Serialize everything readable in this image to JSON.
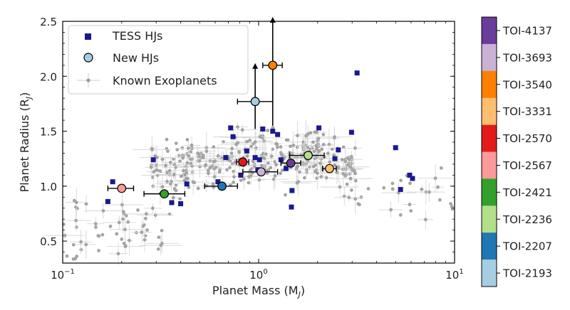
{
  "chart_data": {
    "type": "scatter",
    "xlabel": "Planet Mass (M",
    "xlabel_sub": "J",
    "xlabel_close": ")",
    "ylabel": "Planet Radius (R",
    "ylabel_sub": "J",
    "ylabel_close": ")",
    "xscale": "log",
    "xlim": [
      0.1,
      10
    ],
    "ylim": [
      0.3,
      2.5
    ],
    "x_ticks": [
      {
        "value": 0.1,
        "base": "10",
        "exp": "−1"
      },
      {
        "value": 1,
        "base": "10",
        "exp": "0"
      },
      {
        "value": 10,
        "base": "10",
        "exp": "1"
      }
    ],
    "y_ticks": [
      {
        "value": 0.5,
        "label": "0.5"
      },
      {
        "value": 1.0,
        "label": "1.0"
      },
      {
        "value": 1.5,
        "label": "1.5"
      },
      {
        "value": 2.0,
        "label": "2.0"
      },
      {
        "value": 2.5,
        "label": "2.5"
      }
    ],
    "legend": {
      "placement": "top-left",
      "entries": [
        {
          "label": "TESS HJs",
          "marker": "square",
          "color": "#1a1a8c"
        },
        {
          "label": "New HJs",
          "marker": "circle",
          "color": "#a6cee3"
        },
        {
          "label": "Known Exoplanets",
          "marker": "small-diamond",
          "color": "#9a9a9a"
        }
      ]
    },
    "series": [
      {
        "name": "TESS HJs",
        "marker": "square",
        "color": "#1a1a8c",
        "points": [
          [
            0.17,
            0.86
          ],
          [
            0.18,
            1.04
          ],
          [
            0.29,
            1.24
          ],
          [
            0.36,
            0.85
          ],
          [
            0.4,
            0.84
          ],
          [
            0.43,
            1.02
          ],
          [
            0.62,
            1.04
          ],
          [
            0.68,
            1.26
          ],
          [
            0.72,
            1.53
          ],
          [
            0.74,
            1.45
          ],
          [
            0.81,
            1.1
          ],
          [
            0.87,
            1.32
          ],
          [
            0.96,
            1.26
          ],
          [
            0.99,
            1.15
          ],
          [
            1.01,
            1.24
          ],
          [
            1.05,
            1.52
          ],
          [
            1.18,
            1.5
          ],
          [
            1.25,
            1.47
          ],
          [
            1.3,
            1.24
          ],
          [
            1.38,
            1.16
          ],
          [
            1.47,
            0.81
          ],
          [
            1.48,
            0.96
          ],
          [
            1.82,
            1.28
          ],
          [
            2.03,
            1.53
          ],
          [
            2.28,
            1.16
          ],
          [
            2.45,
            1.25
          ],
          [
            2.55,
            1.33
          ],
          [
            2.98,
            1.49
          ],
          [
            3.18,
            2.03
          ],
          [
            5.0,
            1.35
          ],
          [
            5.3,
            0.97
          ],
          [
            5.9,
            1.1
          ],
          [
            6.1,
            1.07
          ]
        ]
      },
      {
        "name": "New HJs",
        "marker": "circle",
        "points": [
          {
            "label": "TOI-2193",
            "x": 0.96,
            "y": 1.77,
            "color": "#a6cee3",
            "xerr": [
              0.78,
              1.18
            ],
            "yerr": [
              1.66,
              1.88
            ],
            "arrow": "up"
          },
          {
            "label": "TOI-2207",
            "x": 0.65,
            "y": 1.0,
            "color": "#1f78b4",
            "xerr": [
              0.53,
              0.78
            ],
            "yerr": [
              0.98,
              1.02
            ]
          },
          {
            "label": "TOI-2236",
            "x": 1.79,
            "y": 1.28,
            "color": "#b2df8a",
            "xerr": [
              1.44,
              2.16
            ],
            "yerr": [
              1.25,
              1.31
            ]
          },
          {
            "label": "TOI-2421",
            "x": 0.33,
            "y": 0.93,
            "color": "#33a02c",
            "xerr": [
              0.26,
              0.42
            ],
            "yerr": [
              0.91,
              0.95
            ]
          },
          {
            "label": "TOI-2567",
            "x": 0.2,
            "y": 0.98,
            "color": "#fb9a99",
            "xerr": [
              0.17,
              0.23
            ],
            "yerr": [
              0.96,
              1.0
            ]
          },
          {
            "label": "TOI-2570",
            "x": 0.83,
            "y": 1.22,
            "color": "#e31a1c",
            "xerr": [
              0.77,
              0.89
            ],
            "yerr": [
              1.19,
              1.25
            ]
          },
          {
            "label": "TOI-3331",
            "x": 2.3,
            "y": 1.16,
            "color": "#fdbf6f",
            "xerr": [
              2.12,
              2.49
            ],
            "yerr": [
              1.13,
              1.19
            ]
          },
          {
            "label": "TOI-3540",
            "x": 1.18,
            "y": 2.1,
            "color": "#ff7f00",
            "xerr": [
              1.05,
              1.32
            ],
            "yerr": [
              2.04,
              2.16
            ],
            "arrow": "up"
          },
          {
            "label": "TOI-3693",
            "x": 1.03,
            "y": 1.13,
            "color": "#cab2d6",
            "xerr": [
              0.83,
              1.25
            ],
            "yerr": [
              1.1,
              1.16
            ]
          },
          {
            "label": "TOI-4137",
            "x": 1.46,
            "y": 1.21,
            "color": "#6a3d9a",
            "xerr": [
              1.3,
              1.64
            ],
            "yerr": [
              1.18,
              1.24
            ]
          }
        ]
      }
    ],
    "colorbar": {
      "labels": [
        "TOI-4137",
        "TOI-3693",
        "TOI-3540",
        "TOI-3331",
        "TOI-2570",
        "TOI-2567",
        "TOI-2421",
        "TOI-2236",
        "TOI-2207",
        "TOI-2193"
      ],
      "colors": [
        "#6a3d9a",
        "#cab2d6",
        "#ff7f00",
        "#fdbf6f",
        "#e31a1c",
        "#fb9a99",
        "#33a02c",
        "#b2df8a",
        "#1f78b4",
        "#a6cee3"
      ]
    }
  }
}
